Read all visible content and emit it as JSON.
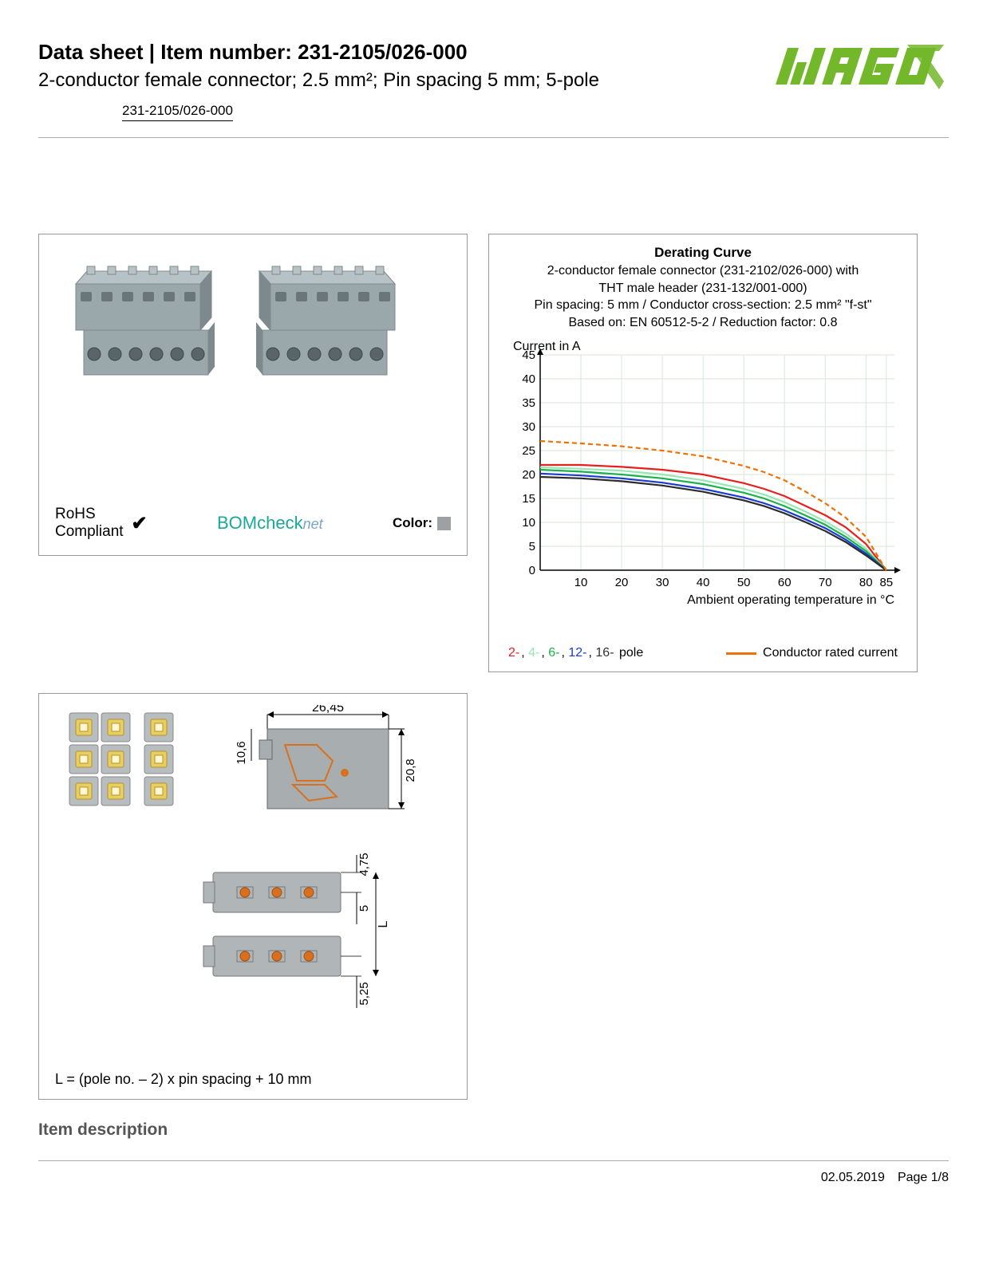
{
  "header": {
    "title": "Data sheet  |  Item number: 231-2105/026-000",
    "subtitle": "2-conductor female connector; 2.5 mm²; Pin spacing 5 mm; 5-pole",
    "part_link": "231-2105/026-000",
    "logo_color": "#73b72b"
  },
  "left_panel": {
    "rohs_label": "RoHS\nCompliant",
    "bomcheck": "BOMcheck",
    "bomcheck_net": "net",
    "color_label": "Color:",
    "swatch_color": "#9ca1a3",
    "connector_color": "#9aa7ab"
  },
  "chart": {
    "title": "Derating Curve",
    "sub1": "2-conductor female connector (231-2102/026-000) with",
    "sub2": "THT male header (231-132/001-000)",
    "sub3": "Pin spacing: 5 mm / Conductor cross-section: 2.5 mm² \"f-st\"",
    "sub4": "Based on: EN 60512-5-2 / Reduction factor: 0.8",
    "y_label": "Current in A",
    "x_label": "Ambient operating temperature in °C",
    "ylim": [
      0,
      45
    ],
    "y_ticks": [
      0,
      5,
      10,
      15,
      20,
      25,
      30,
      35,
      40,
      45
    ],
    "xlim": [
      0,
      87
    ],
    "x_ticks": [
      10,
      20,
      30,
      40,
      50,
      60,
      70,
      80,
      85
    ],
    "grid_color": "#d8e6da",
    "axis_color": "#000000",
    "font_size_axis": 15,
    "font_size_label": 16,
    "series": [
      {
        "name": "2-pole",
        "color": "#e62020",
        "dash": "4 0",
        "data": [
          [
            0,
            22
          ],
          [
            10,
            22
          ],
          [
            20,
            21.6
          ],
          [
            30,
            21
          ],
          [
            40,
            20
          ],
          [
            50,
            18.2
          ],
          [
            55,
            17
          ],
          [
            60,
            15.5
          ],
          [
            65,
            13.5
          ],
          [
            70,
            11.5
          ],
          [
            75,
            9
          ],
          [
            80,
            5.5
          ],
          [
            85,
            0
          ]
        ]
      },
      {
        "name": "4-pole",
        "color": "#98e6b3",
        "dash": "4 0",
        "data": [
          [
            0,
            21.5
          ],
          [
            10,
            21.2
          ],
          [
            20,
            20.8
          ],
          [
            30,
            20
          ],
          [
            40,
            18.8
          ],
          [
            50,
            17
          ],
          [
            55,
            15.8
          ],
          [
            60,
            14.2
          ],
          [
            65,
            12.3
          ],
          [
            70,
            10.2
          ],
          [
            75,
            7.7
          ],
          [
            80,
            4.5
          ],
          [
            85,
            0
          ]
        ]
      },
      {
        "name": "6-pole",
        "color": "#1ab24d",
        "dash": "4 0",
        "data": [
          [
            0,
            21
          ],
          [
            10,
            20.6
          ],
          [
            20,
            20
          ],
          [
            30,
            19.2
          ],
          [
            40,
            18
          ],
          [
            50,
            16.2
          ],
          [
            55,
            15
          ],
          [
            60,
            13.4
          ],
          [
            65,
            11.5
          ],
          [
            70,
            9.5
          ],
          [
            75,
            7
          ],
          [
            80,
            4
          ],
          [
            85,
            0
          ]
        ]
      },
      {
        "name": "12-pole",
        "color": "#1a3bd1",
        "dash": "4 0",
        "data": [
          [
            0,
            20.2
          ],
          [
            10,
            19.8
          ],
          [
            20,
            19.2
          ],
          [
            30,
            18.3
          ],
          [
            40,
            17
          ],
          [
            50,
            15.2
          ],
          [
            55,
            14
          ],
          [
            60,
            12.5
          ],
          [
            65,
            10.7
          ],
          [
            70,
            8.8
          ],
          [
            75,
            6.4
          ],
          [
            80,
            3.5
          ],
          [
            85,
            0
          ]
        ]
      },
      {
        "name": "16-pole",
        "color": "#2b2b2b",
        "dash": "4 0",
        "data": [
          [
            0,
            19.5
          ],
          [
            10,
            19.2
          ],
          [
            20,
            18.6
          ],
          [
            30,
            17.7
          ],
          [
            40,
            16.4
          ],
          [
            50,
            14.6
          ],
          [
            55,
            13.4
          ],
          [
            60,
            11.9
          ],
          [
            65,
            10.1
          ],
          [
            70,
            8.2
          ],
          [
            75,
            5.9
          ],
          [
            80,
            3.1
          ],
          [
            85,
            0
          ]
        ]
      },
      {
        "name": "conductor-rated",
        "color": "#f07000",
        "dash": "6 4",
        "data": [
          [
            0,
            27
          ],
          [
            10,
            26.5
          ],
          [
            20,
            25.9
          ],
          [
            30,
            25
          ],
          [
            40,
            23.8
          ],
          [
            50,
            21.8
          ],
          [
            55,
            20.5
          ],
          [
            60,
            18.8
          ],
          [
            65,
            16.5
          ],
          [
            70,
            14
          ],
          [
            75,
            11
          ],
          [
            80,
            7
          ],
          [
            85,
            0
          ]
        ]
      }
    ],
    "legend_poles_label": "2-, 4-, 6-, 12-, 16- pole",
    "legend_conductor_label": "Conductor rated current"
  },
  "dim_panel": {
    "w_label": "26,45",
    "h1_label": "10,6",
    "h2_label": "20,8",
    "d1_label": "4,75",
    "d2_label": "5",
    "d3_label": "L",
    "d4_label": "5,25",
    "formula": "L = (pole no. – 2) x pin spacing + 10 mm",
    "body_color": "#9aa7ab",
    "accent_color": "#d9a441",
    "inner_color": "#e8d060"
  },
  "section_heading": "Item description",
  "footer": {
    "date": "02.05.2019",
    "page": "Page 1/8"
  }
}
